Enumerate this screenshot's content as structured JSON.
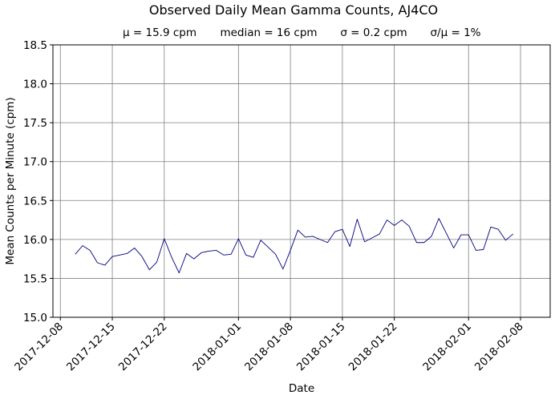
{
  "chart_data": {
    "type": "line",
    "title": "Observed Daily Mean Gamma Counts, AJ4CO",
    "subtitle": {
      "mean": "μ = 15.9 cpm",
      "median": "median = 16 cpm",
      "sigma": "σ = 0.2 cpm",
      "cv": "σ/μ = 1%"
    },
    "xlabel": "Date",
    "ylabel": "Mean Counts per Minute (cpm)",
    "xlim": [
      "2017-12-07",
      "2018-02-12"
    ],
    "ylim": [
      15.0,
      18.5
    ],
    "xticks": [
      "2017-12-08",
      "2017-12-15",
      "2017-12-22",
      "2018-01-01",
      "2018-01-08",
      "2018-01-15",
      "2018-01-22",
      "2018-02-01",
      "2018-02-08"
    ],
    "yticks": [
      "15.0",
      "15.5",
      "16.0",
      "16.5",
      "17.0",
      "17.5",
      "18.0",
      "18.5"
    ],
    "grid": true,
    "line_color": "#000080",
    "grid_color": "#808080",
    "series": [
      {
        "x": [
          "2017-12-10",
          "2017-12-11",
          "2017-12-12",
          "2017-12-13",
          "2017-12-14",
          "2017-12-15",
          "2017-12-16",
          "2017-12-17",
          "2017-12-18",
          "2017-12-19",
          "2017-12-20",
          "2017-12-21",
          "2017-12-22",
          "2017-12-23",
          "2017-12-24",
          "2017-12-25",
          "2017-12-26",
          "2017-12-27",
          "2017-12-28",
          "2017-12-29",
          "2017-12-30",
          "2017-12-31",
          "2018-01-01",
          "2018-01-02",
          "2018-01-03",
          "2018-01-04",
          "2018-01-05",
          "2018-01-06",
          "2018-01-07",
          "2018-01-08",
          "2018-01-09",
          "2018-01-10",
          "2018-01-11",
          "2018-01-12",
          "2018-01-13",
          "2018-01-14",
          "2018-01-15",
          "2018-01-16",
          "2018-01-17",
          "2018-01-18",
          "2018-01-19",
          "2018-01-20",
          "2018-01-21",
          "2018-01-22",
          "2018-01-23",
          "2018-01-24",
          "2018-01-25",
          "2018-01-26",
          "2018-01-27",
          "2018-01-28",
          "2018-01-29",
          "2018-01-30",
          "2018-01-31",
          "2018-02-01",
          "2018-02-02",
          "2018-02-03",
          "2018-02-04",
          "2018-02-05",
          "2018-02-06",
          "2018-02-07"
        ],
        "values": [
          15.81,
          15.92,
          15.86,
          15.7,
          15.67,
          15.78,
          15.8,
          15.82,
          15.89,
          15.78,
          15.61,
          15.71,
          16.01,
          15.77,
          15.57,
          15.82,
          15.75,
          15.83,
          15.85,
          15.86,
          15.8,
          15.81,
          16.01,
          15.8,
          15.77,
          15.99,
          15.9,
          15.81,
          15.62,
          15.86,
          16.12,
          16.03,
          16.04,
          16.0,
          15.96,
          16.1,
          16.13,
          15.91,
          16.26,
          15.97,
          16.02,
          16.07,
          16.25,
          16.18,
          16.25,
          16.17,
          15.96,
          15.96,
          16.04,
          16.27,
          16.08,
          15.89,
          16.06,
          16.06,
          15.86,
          15.87,
          16.16,
          16.13,
          15.99,
          16.07
        ]
      }
    ]
  }
}
